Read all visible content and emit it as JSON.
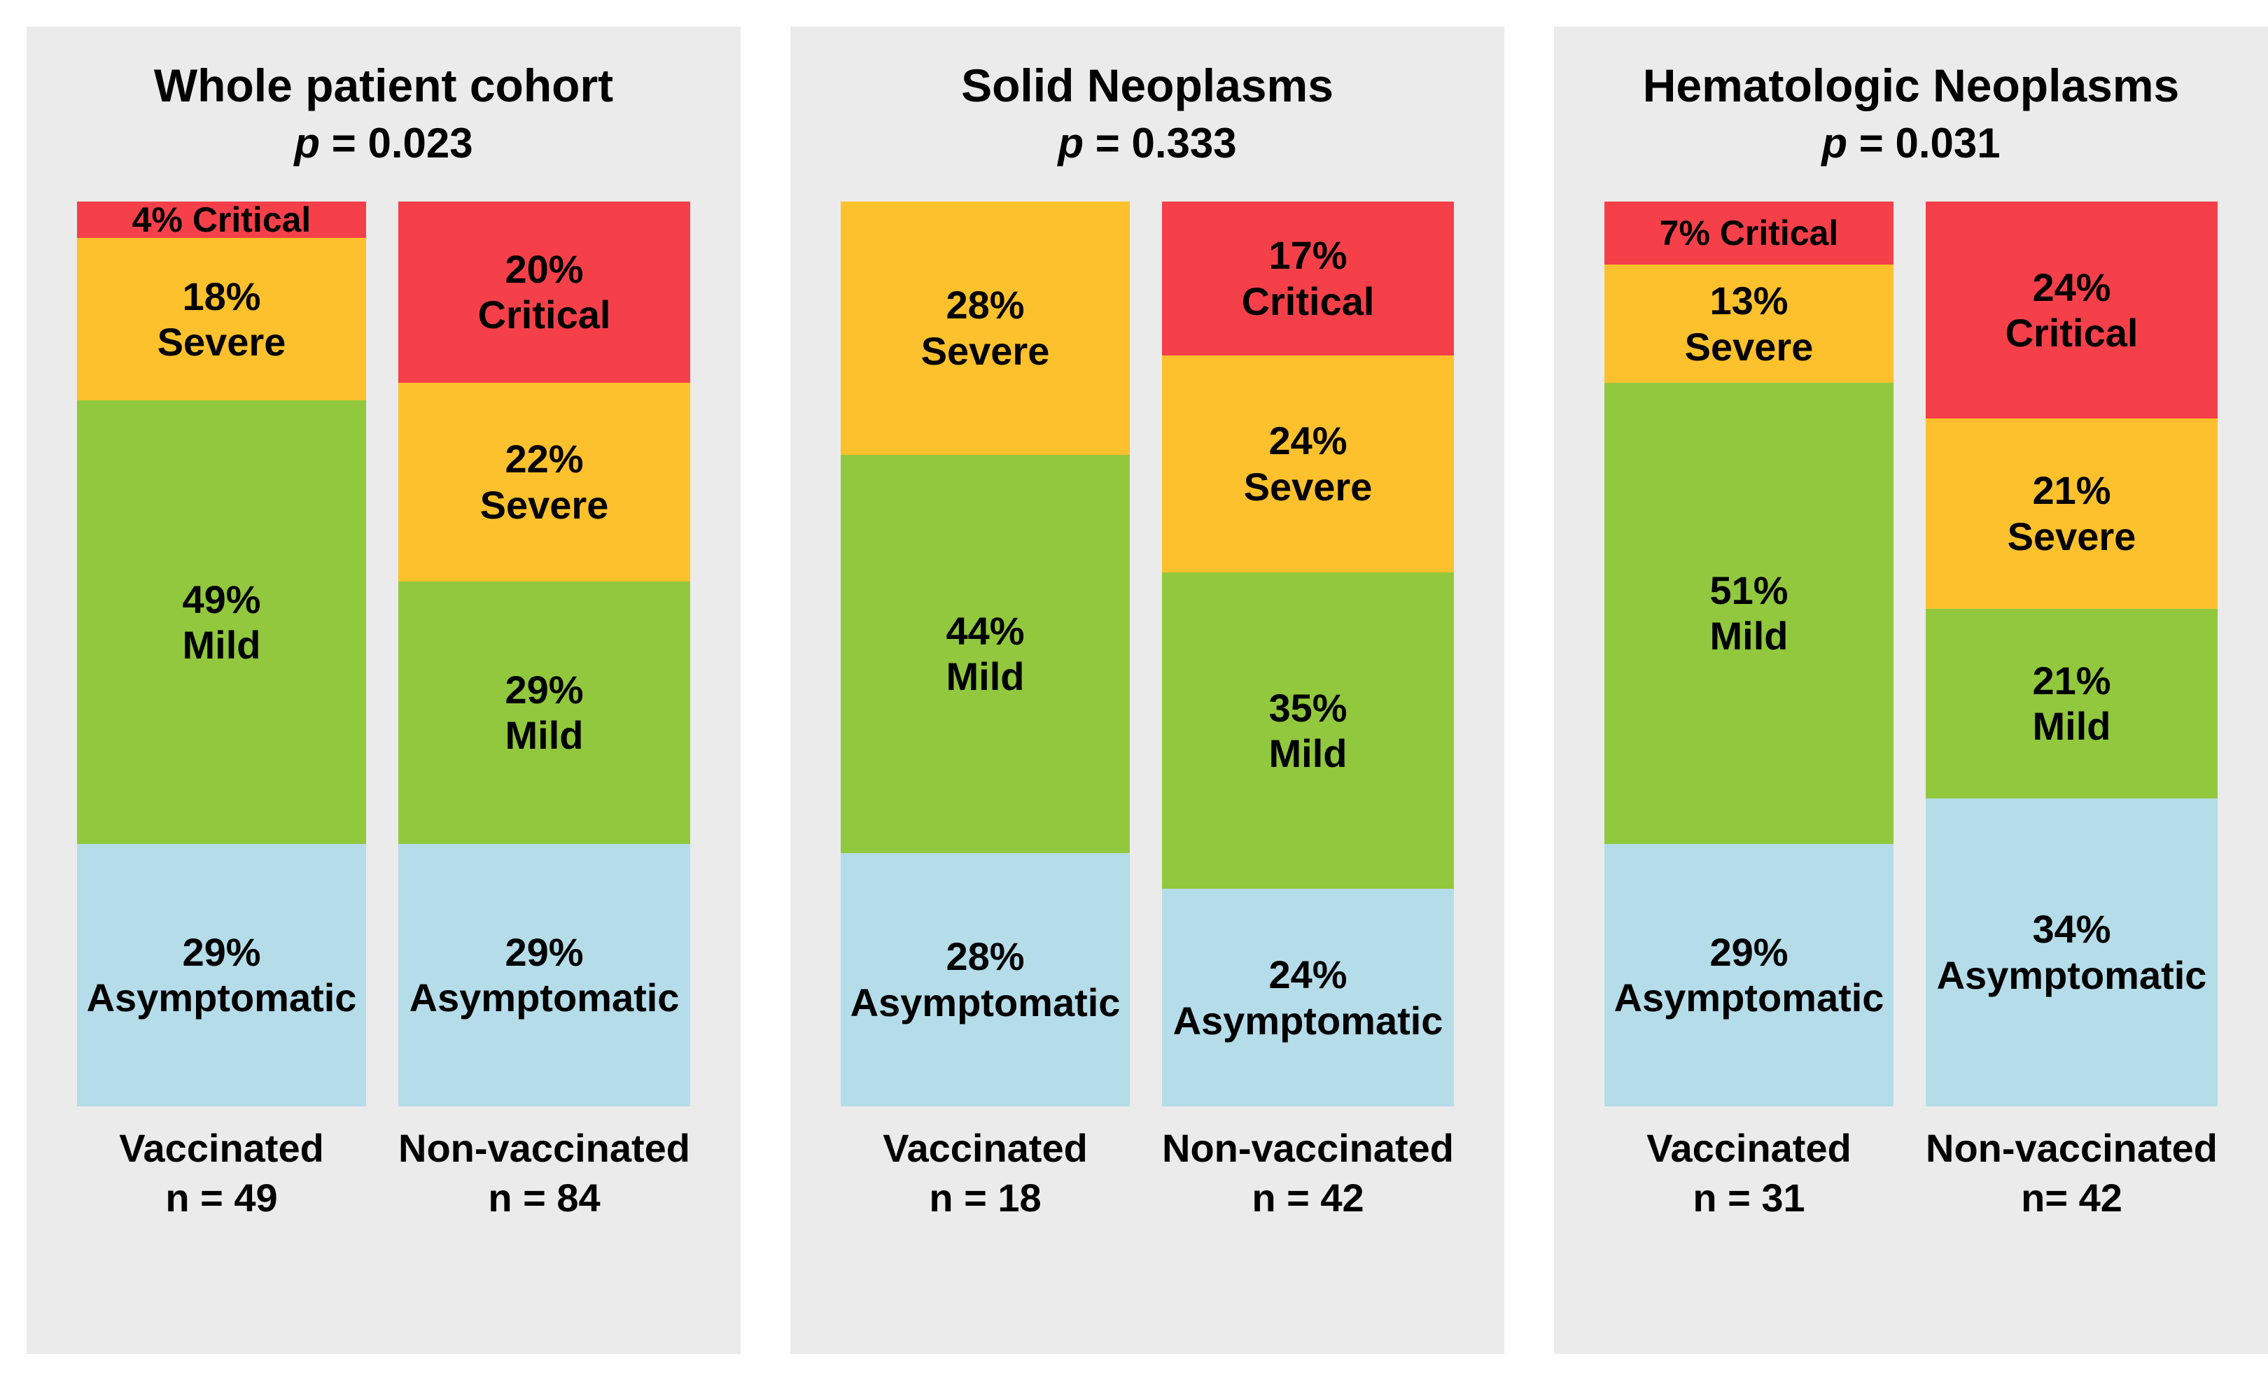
{
  "figure": {
    "background": "#FFFFFF"
  },
  "chart_data": {
    "type": "bar",
    "subtype": "100%-stacked-columns, 3 panels x 2 bars",
    "severities_top_to_bottom": [
      "Critical",
      "Severe",
      "Mild",
      "Asymptomatic"
    ],
    "legend": "none (labels drawn inside segments)",
    "colors": {
      "Critical": "#F5404A",
      "Severe": "#FCC12C",
      "Mild": "#92C83D",
      "Asymptomatic": "#B5DCE9",
      "panel_background": "#EBEBEB",
      "text": "#000000"
    },
    "panels": [
      {
        "title": "Whole patient cohort",
        "p_symbol": "p",
        "p_rest": "= 0.023",
        "bars": [
          {
            "group": "Vaccinated",
            "n": "n = 49",
            "segments": [
              {
                "severity": "Critical",
                "percent": 4,
                "line1": "4% Critical",
                "line2": ""
              },
              {
                "severity": "Severe",
                "percent": 18,
                "line1": "18%",
                "line2": "Severe"
              },
              {
                "severity": "Mild",
                "percent": 49,
                "line1": "49%",
                "line2": "Mild"
              },
              {
                "severity": "Asymptomatic",
                "percent": 29,
                "line1": "29%",
                "line2": "Asymptomatic"
              }
            ]
          },
          {
            "group": "Non-vaccinated",
            "n": "n = 84",
            "segments": [
              {
                "severity": "Critical",
                "percent": 20,
                "line1": "20%",
                "line2": "Critical"
              },
              {
                "severity": "Severe",
                "percent": 22,
                "line1": "22%",
                "line2": "Severe"
              },
              {
                "severity": "Mild",
                "percent": 29,
                "line1": "29%",
                "line2": "Mild"
              },
              {
                "severity": "Asymptomatic",
                "percent": 29,
                "line1": "29%",
                "line2": "Asymptomatic"
              }
            ]
          }
        ]
      },
      {
        "title": "Solid Neoplasms",
        "p_symbol": "p",
        "p_rest": "= 0.333",
        "bars": [
          {
            "group": "Vaccinated",
            "n": "n = 18",
            "segments": [
              {
                "severity": "Severe",
                "percent": 28,
                "line1": "28%",
                "line2": "Severe"
              },
              {
                "severity": "Mild",
                "percent": 44,
                "line1": "44%",
                "line2": "Mild"
              },
              {
                "severity": "Asymptomatic",
                "percent": 28,
                "line1": "28%",
                "line2": "Asymptomatic"
              }
            ]
          },
          {
            "group": "Non-vaccinated",
            "n": "n = 42",
            "segments": [
              {
                "severity": "Critical",
                "percent": 17,
                "line1": "17%",
                "line2": "Critical"
              },
              {
                "severity": "Severe",
                "percent": 24,
                "line1": "24%",
                "line2": "Severe"
              },
              {
                "severity": "Mild",
                "percent": 35,
                "line1": "35%",
                "line2": "Mild"
              },
              {
                "severity": "Asymptomatic",
                "percent": 24,
                "line1": "24%",
                "line2": "Asymptomatic"
              }
            ]
          }
        ]
      },
      {
        "title": "Hematologic Neoplasms",
        "p_symbol": "p",
        "p_rest": "= 0.031",
        "bars": [
          {
            "group": "Vaccinated",
            "n": "n = 31",
            "segments": [
              {
                "severity": "Critical",
                "percent": 7,
                "line1": "7% Critical",
                "line2": ""
              },
              {
                "severity": "Severe",
                "percent": 13,
                "line1": "13%",
                "line2": "Severe"
              },
              {
                "severity": "Mild",
                "percent": 51,
                "line1": "51%",
                "line2": "Mild"
              },
              {
                "severity": "Asymptomatic",
                "percent": 29,
                "line1": "29%",
                "line2": "Asymptomatic"
              }
            ]
          },
          {
            "group": "Non-vaccinated",
            "n": "n= 42",
            "segments": [
              {
                "severity": "Critical",
                "percent": 24,
                "line1": "24%",
                "line2": "Critical"
              },
              {
                "severity": "Severe",
                "percent": 21,
                "line1": "21%",
                "line2": "Severe"
              },
              {
                "severity": "Mild",
                "percent": 21,
                "line1": "21%",
                "line2": "Mild"
              },
              {
                "severity": "Asymptomatic",
                "percent": 34,
                "line1": "34%",
                "line2": "Asymptomatic"
              }
            ]
          }
        ]
      }
    ]
  }
}
